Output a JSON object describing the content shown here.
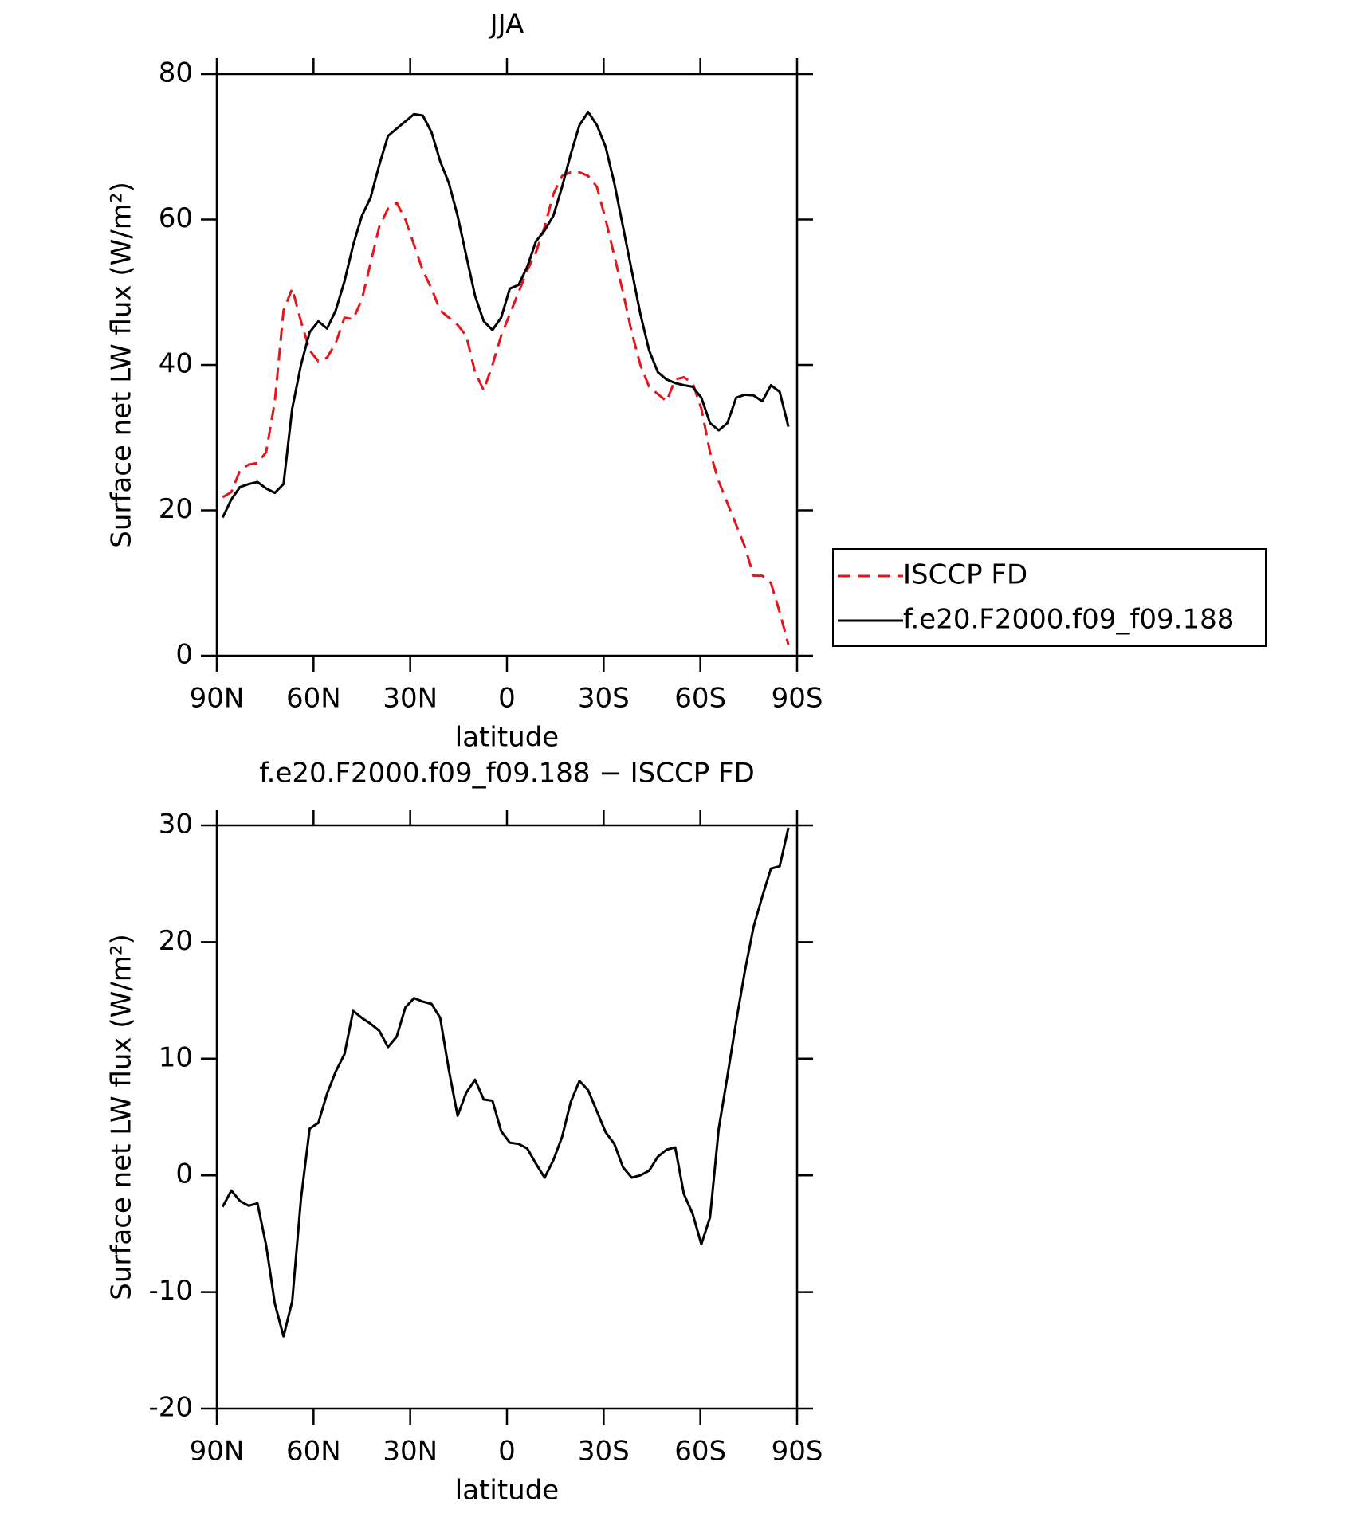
{
  "chart_data": [
    {
      "type": "line",
      "title": "JJA",
      "xlabel": "latitude",
      "ylabel": "Surface net LW flux (W/m²)",
      "x": [
        88.2,
        85.5,
        82.8,
        80.1,
        77.4,
        74.7,
        72.0,
        69.3,
        66.6,
        63.9,
        61.2,
        58.5,
        55.8,
        53.1,
        50.4,
        47.7,
        45.0,
        42.3,
        39.6,
        36.9,
        34.2,
        31.5,
        28.8,
        26.1,
        23.4,
        20.7,
        18.0,
        15.3,
        12.6,
        9.9,
        7.2,
        4.5,
        1.8,
        -0.9,
        -3.6,
        -6.3,
        -9.0,
        -11.7,
        -14.4,
        -17.1,
        -19.8,
        -22.5,
        -25.2,
        -27.9,
        -30.6,
        -33.3,
        -36.0,
        -38.7,
        -41.4,
        -44.1,
        -46.8,
        -49.5,
        -52.2,
        -54.9,
        -57.6,
        -60.3,
        -63.0,
        -65.7,
        -68.4,
        -71.1,
        -73.8,
        -76.5,
        -79.2,
        -81.9,
        -84.6,
        -87.3
      ],
      "series": [
        {
          "name": "ISCCP FD",
          "color": "#e8141c",
          "dash": true,
          "values": [
            21.8,
            22.5,
            25.5,
            26.3,
            26.5,
            28,
            35,
            47.5,
            50.5,
            46,
            42,
            40.5,
            41,
            43,
            46.5,
            46.3,
            49,
            54,
            59,
            61.5,
            62.3,
            60,
            56.5,
            53,
            50.5,
            47.5,
            46.5,
            45.5,
            44,
            39,
            36.5,
            40,
            44,
            47,
            50,
            53,
            55.5,
            59,
            63.5,
            66,
            66.5,
            66.5,
            66,
            64.5,
            60,
            55,
            50,
            44.5,
            40,
            37,
            36,
            35,
            38,
            38.3,
            37.5,
            34,
            28,
            24,
            21,
            18,
            15,
            11,
            11,
            10,
            6,
            1.5
          ]
        },
        {
          "name": "f.e20.F2000.f09_f09.188",
          "color": "#000000",
          "dash": false,
          "values": [
            19.0,
            21.5,
            23.2,
            23.6,
            23.9,
            23.0,
            22.4,
            23.6,
            34.0,
            40.0,
            44.5,
            46.0,
            45.0,
            47.5,
            51.5,
            56.5,
            60.5,
            63.0,
            67.5,
            71.5,
            72.5,
            73.5,
            74.5,
            74.3,
            72.0,
            68.0,
            65.0,
            60.5,
            55.0,
            49.5,
            46.0,
            44.8,
            46.5,
            50.5,
            51.0,
            53.5,
            57.0,
            58.5,
            60.5,
            64.5,
            69.0,
            73.0,
            74.8,
            73.0,
            70.0,
            65.0,
            59.0,
            53.0,
            47.0,
            42.0,
            39.0,
            38.0,
            37.5,
            37.2,
            37.0,
            35.5,
            32.0,
            31.0,
            32.0,
            35.5,
            35.9,
            35.8,
            35.0,
            37.2,
            36.3,
            31.5
          ]
        }
      ],
      "xlim": [
        90,
        -90
      ],
      "xticks": [
        {
          "value": 90,
          "label": "90N"
        },
        {
          "value": 60,
          "label": "60N"
        },
        {
          "value": 30,
          "label": "30N"
        },
        0,
        {
          "value": -30,
          "label": "30S"
        },
        {
          "value": -60,
          "label": "60S"
        },
        {
          "value": -90,
          "label": "90S"
        }
      ],
      "ylim": [
        0,
        80
      ],
      "yticks": [
        0,
        20,
        40,
        60,
        80
      ],
      "legend": "right"
    },
    {
      "type": "line",
      "title": "f.e20.F2000.f09_f09.188 − ISCCP FD",
      "xlabel": "latitude",
      "ylabel": "Surface net LW flux (W/m²)",
      "x": [
        88.2,
        85.5,
        82.8,
        80.1,
        77.4,
        74.7,
        72.0,
        69.3,
        66.6,
        63.9,
        61.2,
        58.5,
        55.8,
        53.1,
        50.4,
        47.7,
        45.0,
        42.3,
        39.6,
        36.9,
        34.2,
        31.5,
        28.8,
        26.1,
        23.4,
        20.7,
        18.0,
        15.3,
        12.6,
        9.9,
        7.2,
        4.5,
        1.8,
        -0.9,
        -3.6,
        -6.3,
        -9.0,
        -11.7,
        -14.4,
        -17.1,
        -19.8,
        -22.5,
        -25.2,
        -27.9,
        -30.6,
        -33.3,
        -36.0,
        -38.7,
        -41.4,
        -44.1,
        -46.8,
        -49.5,
        -52.2,
        -54.9,
        -57.6,
        -60.3,
        -63.0,
        -65.7,
        -68.4,
        -71.1,
        -73.8,
        -76.5,
        -79.2,
        -81.9,
        -84.6,
        -87.3
      ],
      "color": "#000000",
      "values": [
        -2.7,
        -1.3,
        -2.2,
        -2.6,
        -2.4,
        -6,
        -11,
        -13.8,
        -10.8,
        -2,
        4,
        4.5,
        7,
        8.9,
        10.4,
        14.1,
        13.5,
        13,
        12.4,
        11,
        11.9,
        14.4,
        15.2,
        14.9,
        14.7,
        13.5,
        9,
        5.1,
        7.1,
        8.2,
        6.5,
        6.4,
        3.8,
        2.8,
        2.7,
        2.3,
        1.0,
        -0.2,
        1.3,
        3.3,
        6.3,
        8.1,
        7.3,
        5.5,
        3.7,
        2.7,
        0.7,
        -0.2,
        0,
        0.4,
        1.6,
        2.2,
        2.4,
        -1.6,
        -3.3,
        -5.9,
        -3.6,
        4,
        8.5,
        13.2,
        17.5,
        21.3,
        23.9,
        26.3,
        26.5,
        29.8
      ],
      "xlim": [
        90,
        -90
      ],
      "xticks": [
        {
          "value": 90,
          "label": "90N"
        },
        {
          "value": 60,
          "label": "60N"
        },
        {
          "value": 30,
          "label": "30N"
        },
        0,
        {
          "value": -30,
          "label": "30S"
        },
        {
          "value": -60,
          "label": "60S"
        },
        {
          "value": -90,
          "label": "90S"
        }
      ],
      "ylim": [
        -20,
        30
      ],
      "yticks": [
        -20,
        -10,
        0,
        10,
        20,
        30
      ]
    }
  ]
}
